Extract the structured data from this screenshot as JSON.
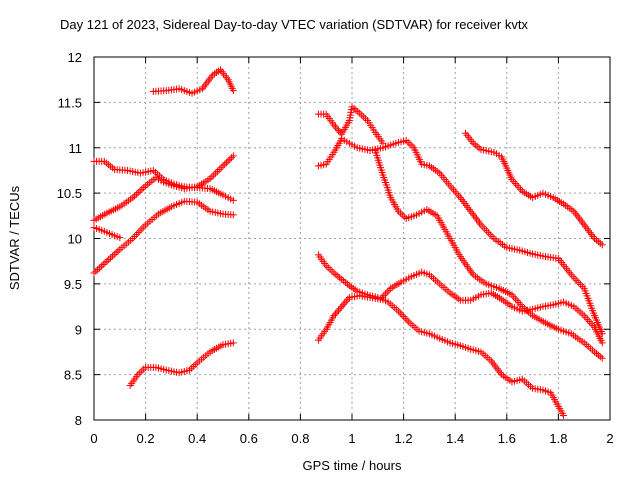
{
  "chart_data": {
    "type": "scatter",
    "title": "Day 121 of 2023, Sidereal Day-to-day VTEC variation (SDTVAR) for receiver kvtx",
    "xlabel": "GPS time / hours",
    "ylabel": "SDTVAR / TECUs",
    "xlim": [
      0,
      2
    ],
    "ylim": [
      8,
      12
    ],
    "xticks": [
      "0",
      "0.2",
      "0.4",
      "0.6",
      "0.8",
      "1",
      "1.2",
      "1.4",
      "1.6",
      "1.8",
      "2"
    ],
    "yticks": [
      "8",
      "8.5",
      "9",
      "9.5",
      "10",
      "10.5",
      "11",
      "11.5",
      "12"
    ],
    "grid": true,
    "marker": "+",
    "color": "#ff0000",
    "series": [
      {
        "name": "s1",
        "points": [
          [
            0.23,
            11.62
          ],
          [
            0.28,
            11.63
          ],
          [
            0.33,
            11.65
          ],
          [
            0.38,
            11.6
          ],
          [
            0.42,
            11.65
          ],
          [
            0.46,
            11.8
          ],
          [
            0.49,
            11.86
          ],
          [
            0.52,
            11.75
          ],
          [
            0.54,
            11.63
          ]
        ]
      },
      {
        "name": "s2",
        "points": [
          [
            0,
            10.85
          ],
          [
            0.04,
            10.85
          ],
          [
            0.08,
            10.76
          ],
          [
            0.13,
            10.75
          ],
          [
            0.18,
            10.72
          ],
          [
            0.23,
            10.75
          ],
          [
            0.27,
            10.65
          ],
          [
            0.31,
            10.6
          ],
          [
            0.35,
            10.57
          ],
          [
            0.4,
            10.56
          ],
          [
            0.45,
            10.55
          ],
          [
            0.5,
            10.48
          ],
          [
            0.54,
            10.42
          ]
        ]
      },
      {
        "name": "s3",
        "points": [
          [
            0,
            10.2
          ],
          [
            0.05,
            10.28
          ],
          [
            0.1,
            10.35
          ],
          [
            0.15,
            10.45
          ],
          [
            0.2,
            10.58
          ],
          [
            0.24,
            10.67
          ],
          [
            0.27,
            10.62
          ],
          [
            0.31,
            10.58
          ],
          [
            0.35,
            10.55
          ],
          [
            0.4,
            10.57
          ],
          [
            0.45,
            10.66
          ],
          [
            0.5,
            10.8
          ],
          [
            0.54,
            10.91
          ]
        ]
      },
      {
        "name": "s4",
        "points": [
          [
            0,
            10.12
          ],
          [
            0.04,
            10.08
          ],
          [
            0.08,
            10.03
          ],
          [
            0.1,
            10.01
          ]
        ]
      },
      {
        "name": "s5",
        "points": [
          [
            0,
            9.62
          ],
          [
            0.05,
            9.75
          ],
          [
            0.1,
            9.88
          ],
          [
            0.15,
            10
          ],
          [
            0.2,
            10.15
          ],
          [
            0.25,
            10.27
          ],
          [
            0.3,
            10.35
          ],
          [
            0.35,
            10.41
          ],
          [
            0.4,
            10.4
          ],
          [
            0.45,
            10.3
          ],
          [
            0.5,
            10.27
          ],
          [
            0.54,
            10.26
          ]
        ]
      },
      {
        "name": "s6",
        "points": [
          [
            0.14,
            8.38
          ],
          [
            0.17,
            8.5
          ],
          [
            0.2,
            8.58
          ],
          [
            0.24,
            8.58
          ],
          [
            0.28,
            8.55
          ],
          [
            0.33,
            8.52
          ],
          [
            0.37,
            8.55
          ],
          [
            0.4,
            8.63
          ],
          [
            0.45,
            8.75
          ],
          [
            0.5,
            8.83
          ],
          [
            0.54,
            8.85
          ]
        ]
      },
      {
        "name": "s7",
        "points": [
          [
            0.87,
            11.37
          ],
          [
            0.9,
            11.37
          ],
          [
            0.93,
            11.25
          ],
          [
            0.96,
            11.15
          ],
          [
            0.99,
            11.3
          ],
          [
            1,
            11.45
          ],
          [
            1.03,
            11.38
          ],
          [
            1.06,
            11.3
          ],
          [
            1.09,
            11.17
          ],
          [
            1.12,
            11.05
          ]
        ]
      },
      {
        "name": "s8",
        "points": [
          [
            0.87,
            10.8
          ],
          [
            0.9,
            10.82
          ],
          [
            0.93,
            10.95
          ],
          [
            0.96,
            11.1
          ],
          [
            0.99,
            11.05
          ],
          [
            1.02,
            11
          ],
          [
            1.07,
            10.97
          ],
          [
            1.12,
            11
          ],
          [
            1.17,
            11.05
          ],
          [
            1.21,
            11.08
          ],
          [
            1.24,
            11
          ],
          [
            1.27,
            10.82
          ],
          [
            1.3,
            10.8
          ],
          [
            1.34,
            10.72
          ],
          [
            1.38,
            10.58
          ],
          [
            1.42,
            10.45
          ],
          [
            1.46,
            10.3
          ],
          [
            1.5,
            10.15
          ],
          [
            1.55,
            10
          ],
          [
            1.6,
            9.9
          ],
          [
            1.65,
            9.87
          ],
          [
            1.7,
            9.83
          ],
          [
            1.75,
            9.8
          ],
          [
            1.8,
            9.78
          ],
          [
            1.85,
            9.6
          ],
          [
            1.9,
            9.45
          ],
          [
            1.94,
            9.15
          ],
          [
            1.97,
            8.95
          ]
        ]
      },
      {
        "name": "s9",
        "points": [
          [
            1.09,
            10.97
          ],
          [
            1.12,
            10.7
          ],
          [
            1.15,
            10.45
          ],
          [
            1.18,
            10.3
          ],
          [
            1.21,
            10.22
          ],
          [
            1.25,
            10.26
          ],
          [
            1.29,
            10.32
          ],
          [
            1.33,
            10.25
          ],
          [
            1.37,
            10.05
          ],
          [
            1.42,
            9.8
          ],
          [
            1.47,
            9.6
          ],
          [
            1.52,
            9.5
          ],
          [
            1.57,
            9.45
          ],
          [
            1.62,
            9.38
          ],
          [
            1.66,
            9.25
          ],
          [
            1.7,
            9.15
          ],
          [
            1.75,
            9.07
          ],
          [
            1.8,
            9
          ],
          [
            1.85,
            8.95
          ],
          [
            1.9,
            8.85
          ],
          [
            1.94,
            8.75
          ],
          [
            1.97,
            8.68
          ]
        ]
      },
      {
        "name": "s10",
        "points": [
          [
            1.44,
            11.16
          ],
          [
            1.47,
            11.05
          ],
          [
            1.5,
            10.98
          ],
          [
            1.55,
            10.95
          ],
          [
            1.58,
            10.9
          ],
          [
            1.62,
            10.65
          ],
          [
            1.66,
            10.52
          ],
          [
            1.7,
            10.45
          ],
          [
            1.74,
            10.5
          ],
          [
            1.78,
            10.45
          ],
          [
            1.82,
            10.38
          ],
          [
            1.86,
            10.3
          ],
          [
            1.9,
            10.15
          ],
          [
            1.94,
            10
          ],
          [
            1.97,
            9.93
          ]
        ]
      },
      {
        "name": "s11",
        "points": [
          [
            0.87,
            9.82
          ],
          [
            0.9,
            9.7
          ],
          [
            0.93,
            9.62
          ],
          [
            0.96,
            9.55
          ],
          [
            0.99,
            9.48
          ],
          [
            1.02,
            9.42
          ],
          [
            1.06,
            9.38
          ],
          [
            1.1,
            9.35
          ],
          [
            1.14,
            9.3
          ],
          [
            1.18,
            9.2
          ],
          [
            1.22,
            9.08
          ],
          [
            1.26,
            8.98
          ],
          [
            1.3,
            8.95
          ],
          [
            1.34,
            8.9
          ],
          [
            1.38,
            8.85
          ],
          [
            1.42,
            8.82
          ],
          [
            1.46,
            8.78
          ],
          [
            1.5,
            8.75
          ],
          [
            1.54,
            8.65
          ],
          [
            1.58,
            8.5
          ],
          [
            1.62,
            8.42
          ],
          [
            1.66,
            8.45
          ],
          [
            1.7,
            8.35
          ],
          [
            1.74,
            8.33
          ],
          [
            1.77,
            8.3
          ],
          [
            1.8,
            8.15
          ],
          [
            1.82,
            8.05
          ]
        ]
      },
      {
        "name": "s12",
        "points": [
          [
            0.87,
            8.88
          ],
          [
            0.9,
            9
          ],
          [
            0.93,
            9.15
          ],
          [
            0.96,
            9.25
          ],
          [
            0.99,
            9.35
          ],
          [
            1.03,
            9.37
          ],
          [
            1.07,
            9.35
          ],
          [
            1.11,
            9.33
          ],
          [
            1.15,
            9.45
          ],
          [
            1.19,
            9.52
          ],
          [
            1.23,
            9.58
          ],
          [
            1.27,
            9.63
          ],
          [
            1.3,
            9.6
          ],
          [
            1.34,
            9.5
          ],
          [
            1.38,
            9.4
          ],
          [
            1.42,
            9.32
          ],
          [
            1.46,
            9.32
          ],
          [
            1.5,
            9.38
          ],
          [
            1.54,
            9.4
          ],
          [
            1.58,
            9.33
          ],
          [
            1.62,
            9.25
          ],
          [
            1.66,
            9.2
          ],
          [
            1.7,
            9.22
          ],
          [
            1.74,
            9.25
          ],
          [
            1.78,
            9.27
          ],
          [
            1.82,
            9.3
          ],
          [
            1.86,
            9.25
          ],
          [
            1.9,
            9.15
          ],
          [
            1.94,
            9.02
          ],
          [
            1.97,
            8.85
          ]
        ]
      }
    ]
  }
}
